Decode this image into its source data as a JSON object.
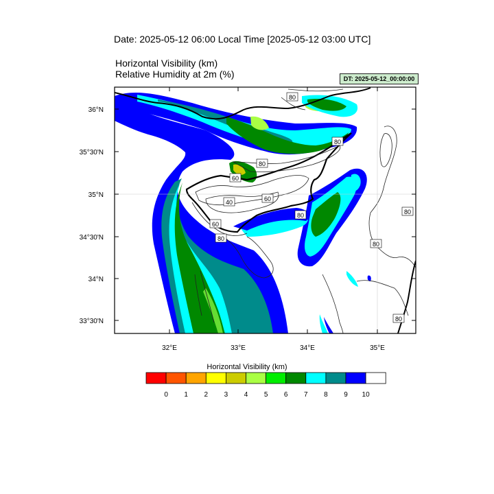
{
  "header": {
    "date_line": "Date: 2025-05-12  06:00 Local Time [2025-05-12  03:00 UTC]",
    "field_1": "Horizontal Visibility   (km)",
    "field_2": "Relative Humidity at 2m   (%)",
    "dt_badge": "DT: 2025-05-12_00:00:00"
  },
  "map": {
    "lat_labels": [
      "36°N",
      "35°30'N",
      "35°N",
      "34°30'N",
      "34°N",
      "33°30'N"
    ],
    "lon_labels": [
      "32°E",
      "33°E",
      "34°E",
      "35°E"
    ],
    "contour_labels": [
      "80",
      "80",
      "60",
      "40",
      "60",
      "80",
      "60",
      "80",
      "80",
      "80",
      "80",
      "80"
    ]
  },
  "legend": {
    "title": "Horizontal Visibility  (km)",
    "ticks": [
      "0",
      "1",
      "2",
      "3",
      "4",
      "5",
      "6",
      "7",
      "8",
      "9",
      "10"
    ],
    "colors": [
      "#ff0000",
      "#ff5500",
      "#ffa500",
      "#ffff00",
      "#cccc00",
      "#aaff44",
      "#00ee00",
      "#008800",
      "#00ffff",
      "#008b8b",
      "#0000ff",
      "#ffffff"
    ]
  }
}
